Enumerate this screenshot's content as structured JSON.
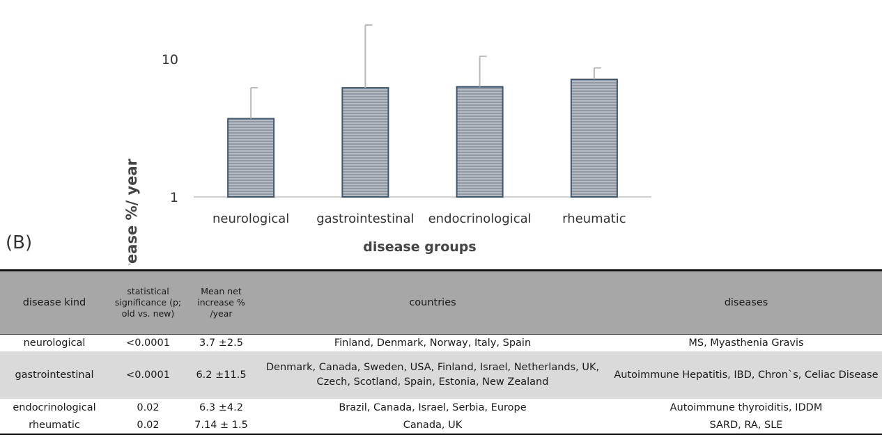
{
  "chart_data": {
    "type": "bar",
    "yscale": "log",
    "ylim": [
      1,
      20
    ],
    "yticks": [
      1,
      10
    ],
    "ylabel": "net increase %/ year",
    "xlabel": "disease groups",
    "categories": [
      "neurological",
      "gastrointestinal",
      "endocrinological",
      "rheumatic"
    ],
    "values": [
      3.7,
      6.2,
      6.3,
      7.14
    ],
    "error_plus": [
      2.5,
      11.5,
      4.2,
      1.5
    ],
    "bar_color": "#8f98a3",
    "bar_border": "#3f5872",
    "grid": false
  },
  "panel_label": "(B)",
  "table": {
    "headers": [
      "disease kind",
      "statistical significance (p; old vs. new)",
      "Mean net increase % /year",
      "countries",
      "diseases"
    ],
    "rows": [
      [
        "neurological",
        "<0.0001",
        "3.7 ±2.5",
        "Finland, Denmark, Norway, Italy, Spain",
        "MS, Myasthenia Gravis"
      ],
      [
        "gastrointestinal",
        "<0.0001",
        "6.2 ±11.5",
        "Denmark, Canada, Sweden, USA, Finland, Israel, Netherlands, UK, Czech, Scotland, Spain, Estonia, New Zealand",
        "Autoimmune Hepatitis, IBD, Chron`s, Celiac Disease"
      ],
      [
        "endocrinological",
        "0.02",
        "6.3 ±4.2",
        "Brazil, Canada, Israel, Serbia, Europe",
        "Autoimmune thyroiditis, IDDM"
      ],
      [
        "rheumatic",
        "0.02",
        "7.14 ± 1.5",
        "Canada, UK",
        "SARD, RA, SLE"
      ]
    ]
  }
}
